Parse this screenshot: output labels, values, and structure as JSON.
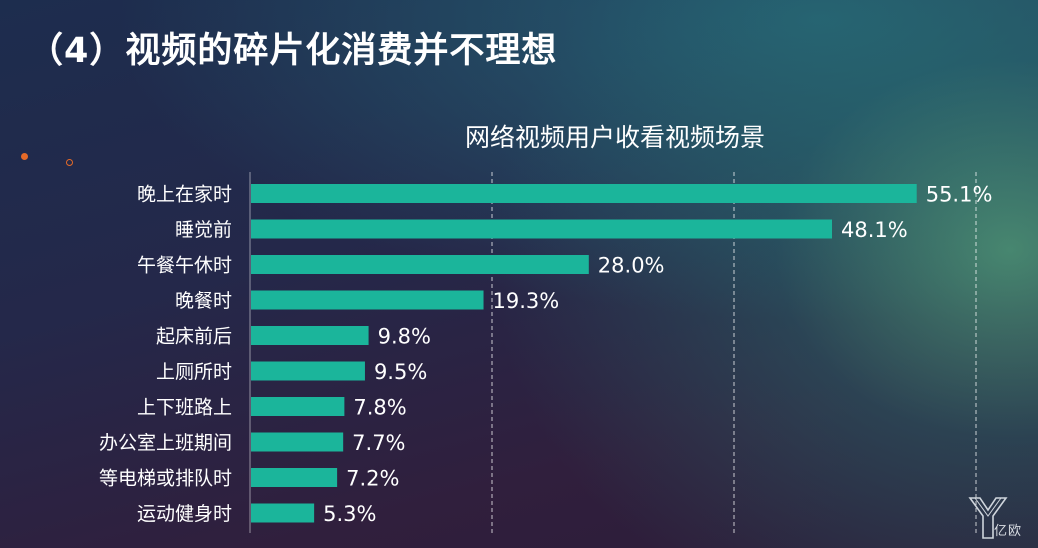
{
  "slide": {
    "title": "（4）视频的碎片化消费并不理想"
  },
  "watermark": {
    "text": "亿欧",
    "icon": "yiou-logo-icon"
  },
  "colors": {
    "bar": "#1bb59b",
    "accent_dot": "#e56a28"
  },
  "chart_data": {
    "type": "bar",
    "orientation": "horizontal",
    "title": "网络视频用户收看视频场景",
    "categories": [
      "晚上在家时",
      "睡觉前",
      "午餐午休时",
      "晚餐时",
      "起床前后",
      "上厕所时",
      "上下班路上",
      "办公室上班期间",
      "等电梯或排队时",
      "运动健身时"
    ],
    "values": [
      55.1,
      48.1,
      28.0,
      19.3,
      9.8,
      9.5,
      7.8,
      7.7,
      7.2,
      5.3
    ],
    "value_labels": [
      "55.1%",
      "48.1%",
      "28.0%",
      "19.3%",
      "9.8%",
      "9.5%",
      "7.8%",
      "7.7%",
      "7.2%",
      "5.3%"
    ],
    "xlim": [
      0,
      60
    ],
    "gridlines": [
      20,
      40,
      60
    ],
    "grid": "dashed vertical",
    "legend": "none"
  }
}
